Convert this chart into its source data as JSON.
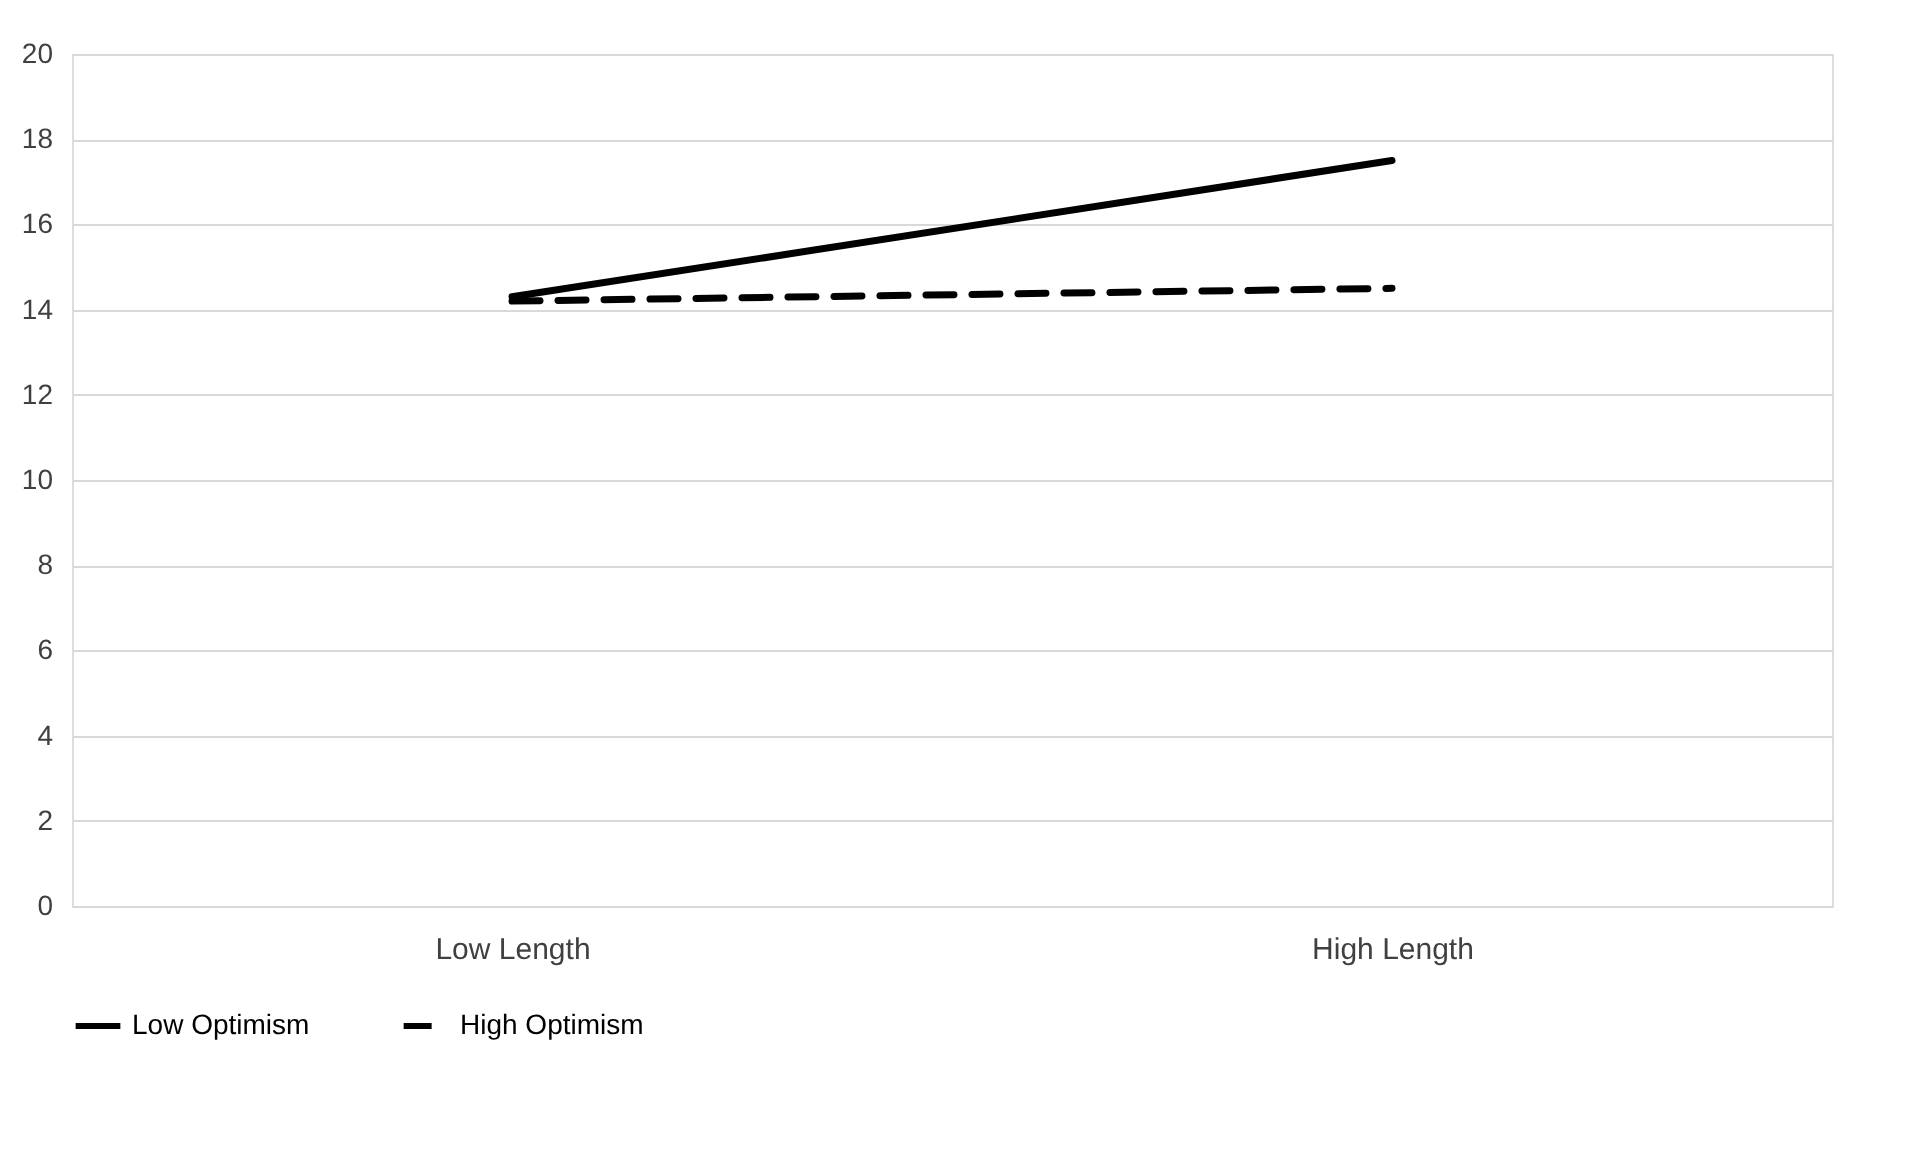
{
  "chart_data": {
    "type": "line",
    "categories": [
      "Low Length",
      "High Length"
    ],
    "series": [
      {
        "name": "Low Optimism",
        "color": "#000000",
        "line_style": "solid",
        "values": [
          14.3,
          17.5
        ]
      },
      {
        "name": "High Optimism",
        "color": "#000000",
        "line_style": "dashed",
        "values": [
          14.2,
          14.5
        ]
      }
    ],
    "ylim": [
      0,
      20
    ],
    "yticks": [
      0,
      2,
      4,
      6,
      8,
      10,
      12,
      14,
      16,
      18,
      20
    ],
    "grid": "y",
    "legend": "bottom"
  }
}
